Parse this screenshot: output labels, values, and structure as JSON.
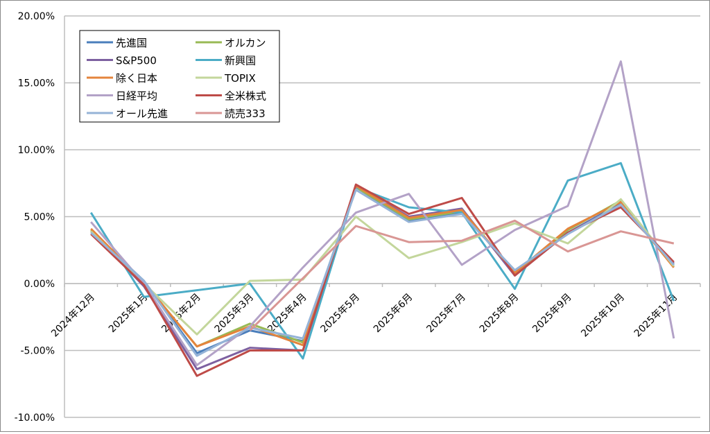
{
  "chart_data": {
    "type": "line",
    "title": "",
    "xlabel": "",
    "ylabel": "",
    "ylim": [
      -10,
      20
    ],
    "ytick_step": 5,
    "ytick_format": "percent-2dp",
    "grid": "horizontal",
    "legend_placement": "top-left",
    "categories": [
      "2024年12月",
      "2025年1月",
      "2025年2月",
      "2025年3月",
      "2025年4月",
      "2025年5月",
      "2025年6月",
      "2025年7月",
      "2025年8月",
      "2025年9月",
      "2025年10月",
      "2025年11月"
    ],
    "series": [
      {
        "name": "先進国",
        "color": "#4a7ebb",
        "values": [
          3.9,
          0.2,
          -5.2,
          -3.5,
          -4.3,
          7.2,
          4.7,
          5.3,
          0.9,
          3.8,
          6.0,
          1.4
        ]
      },
      {
        "name": "オルカン",
        "color": "#98b954",
        "values": [
          4.0,
          0.1,
          -4.7,
          -3.0,
          -4.4,
          7.2,
          4.8,
          5.4,
          0.8,
          4.0,
          6.2,
          1.3
        ]
      },
      {
        "name": "S&P500",
        "color": "#7d60a0",
        "values": [
          3.9,
          -0.2,
          -6.4,
          -4.8,
          -5.0,
          7.3,
          5.0,
          5.6,
          0.6,
          3.8,
          5.9,
          1.5
        ]
      },
      {
        "name": "新興国",
        "color": "#4bacc6",
        "values": [
          5.3,
          -1.0,
          -0.5,
          0.0,
          -5.6,
          7.2,
          5.7,
          5.3,
          -0.4,
          7.7,
          9.0,
          -1.3
        ]
      },
      {
        "name": "除く日本",
        "color": "#e4843c",
        "values": [
          4.1,
          0.1,
          -4.7,
          -3.2,
          -4.6,
          7.3,
          4.9,
          5.5,
          0.8,
          4.1,
          6.1,
          1.2
        ]
      },
      {
        "name": "TOPIX",
        "color": "#c3d69b",
        "values": [
          3.9,
          0.0,
          -3.8,
          0.2,
          0.3,
          5.0,
          1.9,
          3.1,
          4.5,
          3.0,
          6.3,
          1.3
        ]
      },
      {
        "name": "日経平均",
        "color": "#b3a2c7",
        "values": [
          4.6,
          0.0,
          -6.1,
          -3.2,
          1.2,
          5.3,
          6.7,
          1.4,
          4.0,
          5.8,
          16.6,
          -4.1
        ]
      },
      {
        "name": "全米株式",
        "color": "#be4b48",
        "values": [
          3.7,
          -0.1,
          -6.9,
          -5.0,
          -5.0,
          7.4,
          5.2,
          6.4,
          0.6,
          3.8,
          5.7,
          1.6
        ]
      },
      {
        "name": "オール先進",
        "color": "#95b3d7",
        "values": [
          3.8,
          0.2,
          -5.4,
          -3.3,
          -4.1,
          7.0,
          4.6,
          5.2,
          1.0,
          3.7,
          5.9,
          1.4
        ]
      },
      {
        "name": "読売333",
        "color": "#d99694",
        "values": [
          null,
          null,
          null,
          -3.5,
          0.4,
          4.3,
          3.1,
          3.2,
          4.7,
          2.4,
          3.9,
          3.0
        ]
      }
    ]
  }
}
